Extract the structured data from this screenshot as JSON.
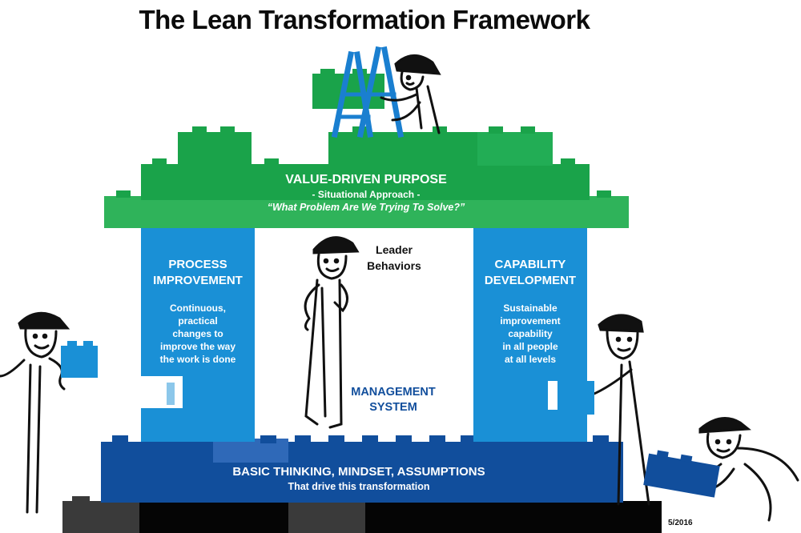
{
  "title": "The Lean Transformation Framework",
  "roof": {
    "heading": "VALUE-DRIVEN PURPOSE",
    "line1": "- Situational Approach -",
    "line2": "“What Problem Are We Trying To Solve?”"
  },
  "left_pillar": {
    "heading_line1": "PROCESS",
    "heading_line2": "IMPROVEMENT",
    "body": [
      "Continuous,",
      "practical",
      "changes to",
      "improve the way",
      "the work is done"
    ]
  },
  "right_pillar": {
    "heading_line1": "CAPABILITY",
    "heading_line2": "DEVELOPMENT",
    "body": [
      "Sustainable",
      "improvement",
      "capability",
      "in all people",
      "at all levels"
    ]
  },
  "center": {
    "leader_line1": "Leader",
    "leader_line2": "Behaviors",
    "mgmt_line1": "MANAGEMENT",
    "mgmt_line2": "SYSTEM"
  },
  "base": {
    "heading": "BASIC THINKING, MINDSET, ASSUMPTIONS",
    "subtext": "That drive this transformation"
  },
  "date_stamp": "5/2016",
  "colors": {
    "green": "#1aa34a",
    "green_light": "#2fb35a",
    "blue": "#1a90d6",
    "navy": "#114e9c",
    "black": "#0a0a0a",
    "ladder": "#1a7fd0"
  },
  "figures": [
    "climbing-worker",
    "leader-figure",
    "left-worker",
    "right-worker",
    "crouching-worker"
  ]
}
